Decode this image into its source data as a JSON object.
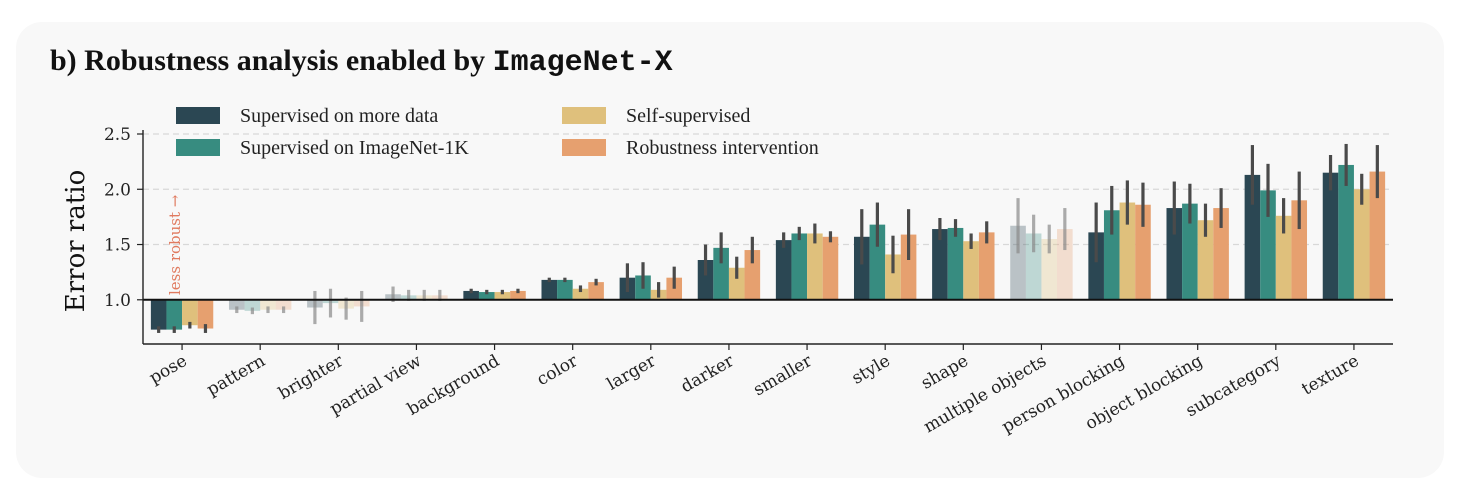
{
  "title": {
    "prefix": "b) Robustness analysis enabled by",
    "mono": "ImageNet-X"
  },
  "annotation": "less robust →",
  "colors": [
    "#2b4753",
    "#378c80",
    "#dfc07c",
    "#e6a06f"
  ],
  "chart_data": {
    "type": "bar",
    "ylabel": "Error ratio",
    "ylim": [
      0.6,
      2.5
    ],
    "yticks": [
      "1.0",
      "1.5",
      "2.0",
      "2.5"
    ],
    "baseline": 1.0,
    "grid": "horizontal dashed",
    "legend_position": "top-left",
    "categories": [
      "pose",
      "pattern",
      "brighter",
      "partial view",
      "background",
      "color",
      "larger",
      "darker",
      "smaller",
      "style",
      "shape",
      "multiple objects",
      "person blocking",
      "object blocking",
      "subcategory",
      "texture"
    ],
    "faded_categories": [
      "pattern",
      "brighter",
      "partial view",
      "multiple objects"
    ],
    "series": [
      {
        "name": "Supervised on more data",
        "values": [
          0.73,
          0.91,
          0.93,
          1.05,
          1.08,
          1.18,
          1.2,
          1.36,
          1.54,
          1.57,
          1.64,
          1.67,
          1.61,
          1.83,
          2.13,
          2.15
        ],
        "err": [
          0.03,
          0.03,
          0.15,
          0.07,
          0.02,
          0.02,
          0.13,
          0.14,
          0.07,
          0.25,
          0.1,
          0.25,
          0.27,
          0.24,
          0.27,
          0.16
        ]
      },
      {
        "name": "Supervised on ImageNet-1K",
        "values": [
          0.73,
          0.9,
          0.97,
          1.04,
          1.07,
          1.18,
          1.22,
          1.47,
          1.6,
          1.68,
          1.65,
          1.6,
          1.81,
          1.87,
          1.99,
          2.22
        ],
        "err": [
          0.03,
          0.03,
          0.13,
          0.05,
          0.02,
          0.02,
          0.12,
          0.14,
          0.06,
          0.2,
          0.08,
          0.17,
          0.22,
          0.18,
          0.24,
          0.19
        ]
      },
      {
        "name": "Self-supervised",
        "values": [
          0.77,
          0.91,
          0.92,
          1.04,
          1.07,
          1.1,
          1.09,
          1.29,
          1.6,
          1.41,
          1.53,
          1.55,
          1.88,
          1.72,
          1.76,
          2.0
        ],
        "err": [
          0.03,
          0.03,
          0.1,
          0.05,
          0.02,
          0.03,
          0.07,
          0.1,
          0.09,
          0.17,
          0.07,
          0.13,
          0.2,
          0.15,
          0.16,
          0.14
        ]
      },
      {
        "name": "Robustness intervention",
        "values": [
          0.74,
          0.91,
          0.94,
          1.04,
          1.08,
          1.16,
          1.2,
          1.45,
          1.57,
          1.59,
          1.61,
          1.64,
          1.86,
          1.83,
          1.9,
          2.16
        ],
        "err": [
          0.04,
          0.03,
          0.14,
          0.05,
          0.02,
          0.03,
          0.1,
          0.12,
          0.05,
          0.23,
          0.1,
          0.19,
          0.2,
          0.18,
          0.26,
          0.24
        ]
      }
    ]
  }
}
